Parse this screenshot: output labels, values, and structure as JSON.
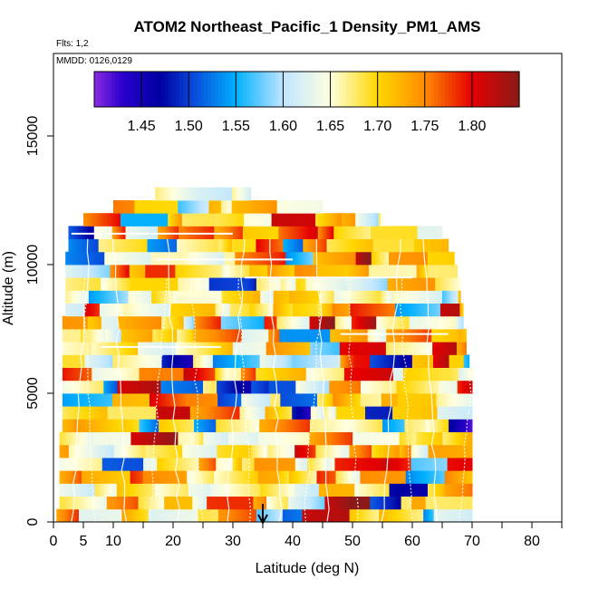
{
  "chart_data": {
    "type": "heatmap",
    "title": "ATOM2 Northeast_Pacific_1 Density_PM1_AMS",
    "flights_note": "Flts: 1,2",
    "date_note": "MMDD: 0126,0129",
    "xlabel": "Latitude (deg N)",
    "ylabel": "Altitude (m)",
    "xlim": [
      0,
      85
    ],
    "ylim": [
      0,
      18000
    ],
    "x_ticks": [
      "0",
      "5",
      "10",
      "20",
      "30",
      "40",
      "50",
      "60",
      "70",
      "80"
    ],
    "x_tick_values": [
      0,
      5,
      10,
      20,
      30,
      40,
      50,
      60,
      70,
      80
    ],
    "x_minor_ticks": [
      15,
      25,
      35,
      45,
      55,
      65,
      75,
      85
    ],
    "y_ticks": [
      "0",
      "5000",
      "10000",
      "15000"
    ],
    "y_tick_values": [
      0,
      5000,
      10000,
      15000
    ],
    "colorbar": {
      "min": 1.4,
      "max": 1.85,
      "ticks": [
        "1.45",
        "1.50",
        "1.55",
        "1.60",
        "1.65",
        "1.70",
        "1.75",
        "1.80"
      ],
      "tick_values": [
        1.45,
        1.5,
        1.55,
        1.6,
        1.65,
        1.7,
        1.75,
        1.8
      ],
      "stops": [
        {
          "v": 1.4,
          "c": "#8a2be2"
        },
        {
          "v": 1.43,
          "c": "#2a00cc"
        },
        {
          "v": 1.47,
          "c": "#0000a0"
        },
        {
          "v": 1.5,
          "c": "#0a3fd6"
        },
        {
          "v": 1.55,
          "c": "#00b0ff"
        },
        {
          "v": 1.6,
          "c": "#bfe6ff"
        },
        {
          "v": 1.65,
          "c": "#ffffe0"
        },
        {
          "v": 1.7,
          "c": "#ffd700"
        },
        {
          "v": 1.75,
          "c": "#ff8c00"
        },
        {
          "v": 1.8,
          "c": "#e60000"
        },
        {
          "v": 1.85,
          "c": "#8b1a1a"
        }
      ]
    },
    "marker": {
      "label": "arrow",
      "latitude": 35
    },
    "layers": [
      {
        "alt": 0,
        "lat_min": 0.5,
        "lat_max": 70
      },
      {
        "alt": 500,
        "lat_min": 1,
        "lat_max": 70
      },
      {
        "alt": 1000,
        "lat_min": 1,
        "lat_max": 70
      },
      {
        "alt": 1500,
        "lat_min": 1,
        "lat_max": 70
      },
      {
        "alt": 2000,
        "lat_min": 1,
        "lat_max": 70
      },
      {
        "alt": 2500,
        "lat_min": 1,
        "lat_max": 70
      },
      {
        "alt": 3000,
        "lat_min": 1,
        "lat_max": 70
      },
      {
        "alt": 3500,
        "lat_min": 1.5,
        "lat_max": 70
      },
      {
        "alt": 4000,
        "lat_min": 1.5,
        "lat_max": 70
      },
      {
        "alt": 4500,
        "lat_min": 1.5,
        "lat_max": 70
      },
      {
        "alt": 5000,
        "lat_min": 1.5,
        "lat_max": 70
      },
      {
        "alt": 5500,
        "lat_min": 1.5,
        "lat_max": 70
      },
      {
        "alt": 6000,
        "lat_min": 1.5,
        "lat_max": 69.5
      },
      {
        "alt": 6500,
        "lat_min": 1.5,
        "lat_max": 69
      },
      {
        "alt": 7000,
        "lat_min": 1.5,
        "lat_max": 69
      },
      {
        "alt": 7500,
        "lat_min": 1.5,
        "lat_max": 68.5
      },
      {
        "alt": 8000,
        "lat_min": 2,
        "lat_max": 68.5
      },
      {
        "alt": 8500,
        "lat_min": 2,
        "lat_max": 68
      },
      {
        "alt": 9000,
        "lat_min": 2,
        "lat_max": 68
      },
      {
        "alt": 9500,
        "lat_min": 2,
        "lat_max": 67.5
      },
      {
        "alt": 10000,
        "lat_min": 2,
        "lat_max": 67
      },
      {
        "alt": 10500,
        "lat_min": 2.5,
        "lat_max": 66
      },
      {
        "alt": 11000,
        "lat_min": 2.5,
        "lat_max": 65
      },
      {
        "alt": 11500,
        "lat_min": 5,
        "lat_max": 55
      },
      {
        "alt": 12000,
        "lat_min": 10,
        "lat_max": 45
      },
      {
        "alt": 12500,
        "lat_min": 17,
        "lat_max": 33
      }
    ]
  }
}
